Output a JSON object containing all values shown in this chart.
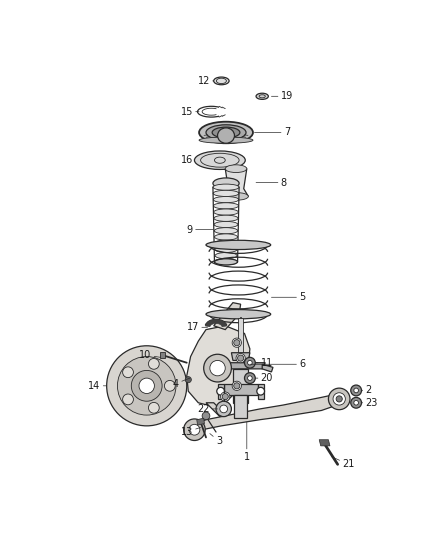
{
  "background_color": "#ffffff",
  "line_color": "#2a2a2a",
  "label_color": "#1a1a1a",
  "fig_width": 4.38,
  "fig_height": 5.33,
  "dpi": 100
}
